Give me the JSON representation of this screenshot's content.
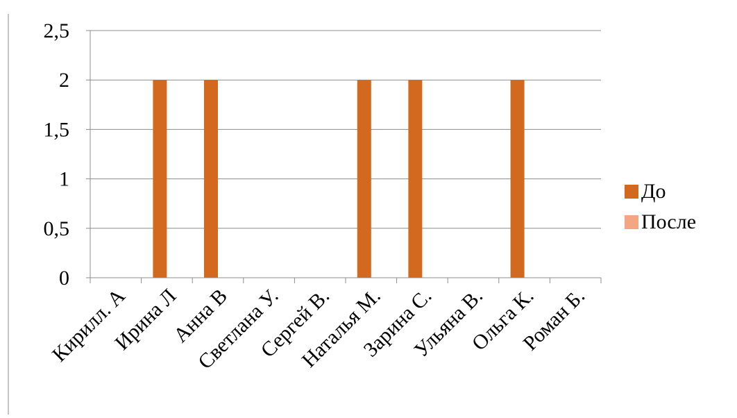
{
  "chart_data": {
    "type": "bar",
    "categories": [
      "Кирилл. А",
      "Ирина Л",
      "Анна В",
      "Светлана У.",
      "Сергей В.",
      "Наталья М.",
      "Зарина С.",
      "Ульяна  В.",
      "Ольга К.",
      "Роман Б."
    ],
    "series": [
      {
        "name": "До",
        "values": [
          0,
          2,
          2,
          0,
          0,
          2,
          2,
          0,
          2,
          0
        ],
        "color": "#D2691E"
      },
      {
        "name": "После",
        "values": [
          0,
          0,
          0,
          0,
          0,
          0,
          0,
          0,
          0,
          0
        ],
        "color": "#F4A582"
      }
    ],
    "yticks": [
      "0",
      "0,5",
      "1",
      "1,5",
      "2",
      "2,5"
    ],
    "ylim": [
      0,
      2.5
    ],
    "grid": true,
    "legend": "right"
  }
}
